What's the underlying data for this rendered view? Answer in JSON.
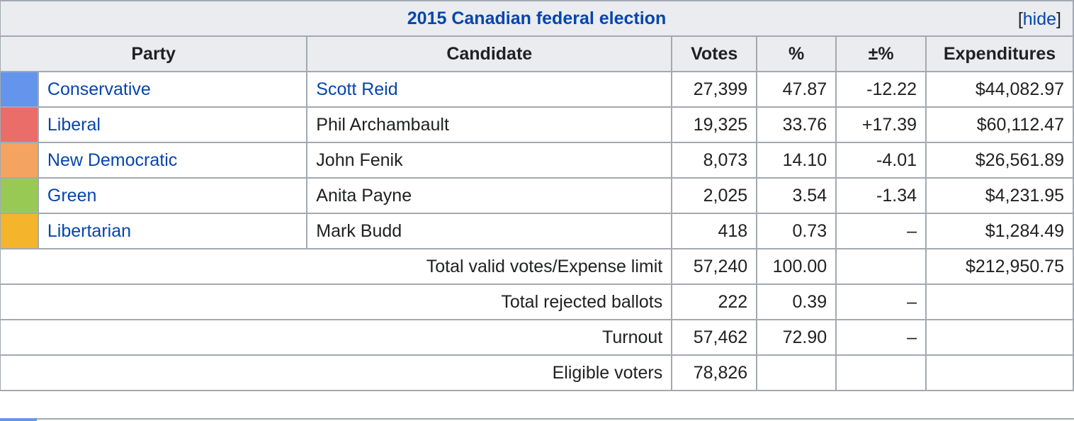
{
  "table": {
    "title": "2015 Canadian federal election",
    "hide_label": "[hide]",
    "headers": {
      "party": "Party",
      "candidate": "Candidate",
      "votes": "Votes",
      "percent": "%",
      "change": "±%",
      "expenditures": "Expenditures"
    },
    "rows": [
      {
        "color": "#6495ed",
        "party": "Conservative",
        "party_link": true,
        "candidate": "Scott Reid",
        "candidate_link": true,
        "votes": "27,399",
        "percent": "47.87",
        "change": "-12.22",
        "expenditures": "$44,082.97"
      },
      {
        "color": "#ea6d6a",
        "party": "Liberal",
        "party_link": true,
        "candidate": "Phil Archambault",
        "candidate_link": false,
        "votes": "19,325",
        "percent": "33.76",
        "change": "+17.39",
        "expenditures": "$60,112.47"
      },
      {
        "color": "#f4a460",
        "party": "New Democratic",
        "party_link": true,
        "candidate": "John Fenik",
        "candidate_link": false,
        "votes": "8,073",
        "percent": "14.10",
        "change": "-4.01",
        "expenditures": "$26,561.89"
      },
      {
        "color": "#99c955",
        "party": "Green",
        "party_link": true,
        "candidate": "Anita Payne",
        "candidate_link": false,
        "votes": "2,025",
        "percent": "3.54",
        "change": "-1.34",
        "expenditures": "$4,231.95"
      },
      {
        "color": "#f4b52c",
        "party": "Libertarian",
        "party_link": true,
        "candidate": "Mark Budd",
        "candidate_link": false,
        "votes": "418",
        "percent": "0.73",
        "change": "–",
        "expenditures": "$1,284.49"
      }
    ],
    "summary": {
      "total_valid": {
        "label": "Total valid votes/Expense limit",
        "votes": "57,240",
        "percent": "100.00",
        "change": "",
        "expenditures": "$212,950.75"
      },
      "rejected": {
        "label": "Total rejected ballots",
        "votes": "222",
        "percent": "0.39",
        "change": "–"
      },
      "turnout": {
        "label": "Turnout",
        "votes": "57,462",
        "percent": "72.90",
        "change": "–"
      },
      "eligible": {
        "label": "Eligible voters",
        "votes": "78,826"
      }
    },
    "bottom_strip_color": "#6495ed"
  }
}
